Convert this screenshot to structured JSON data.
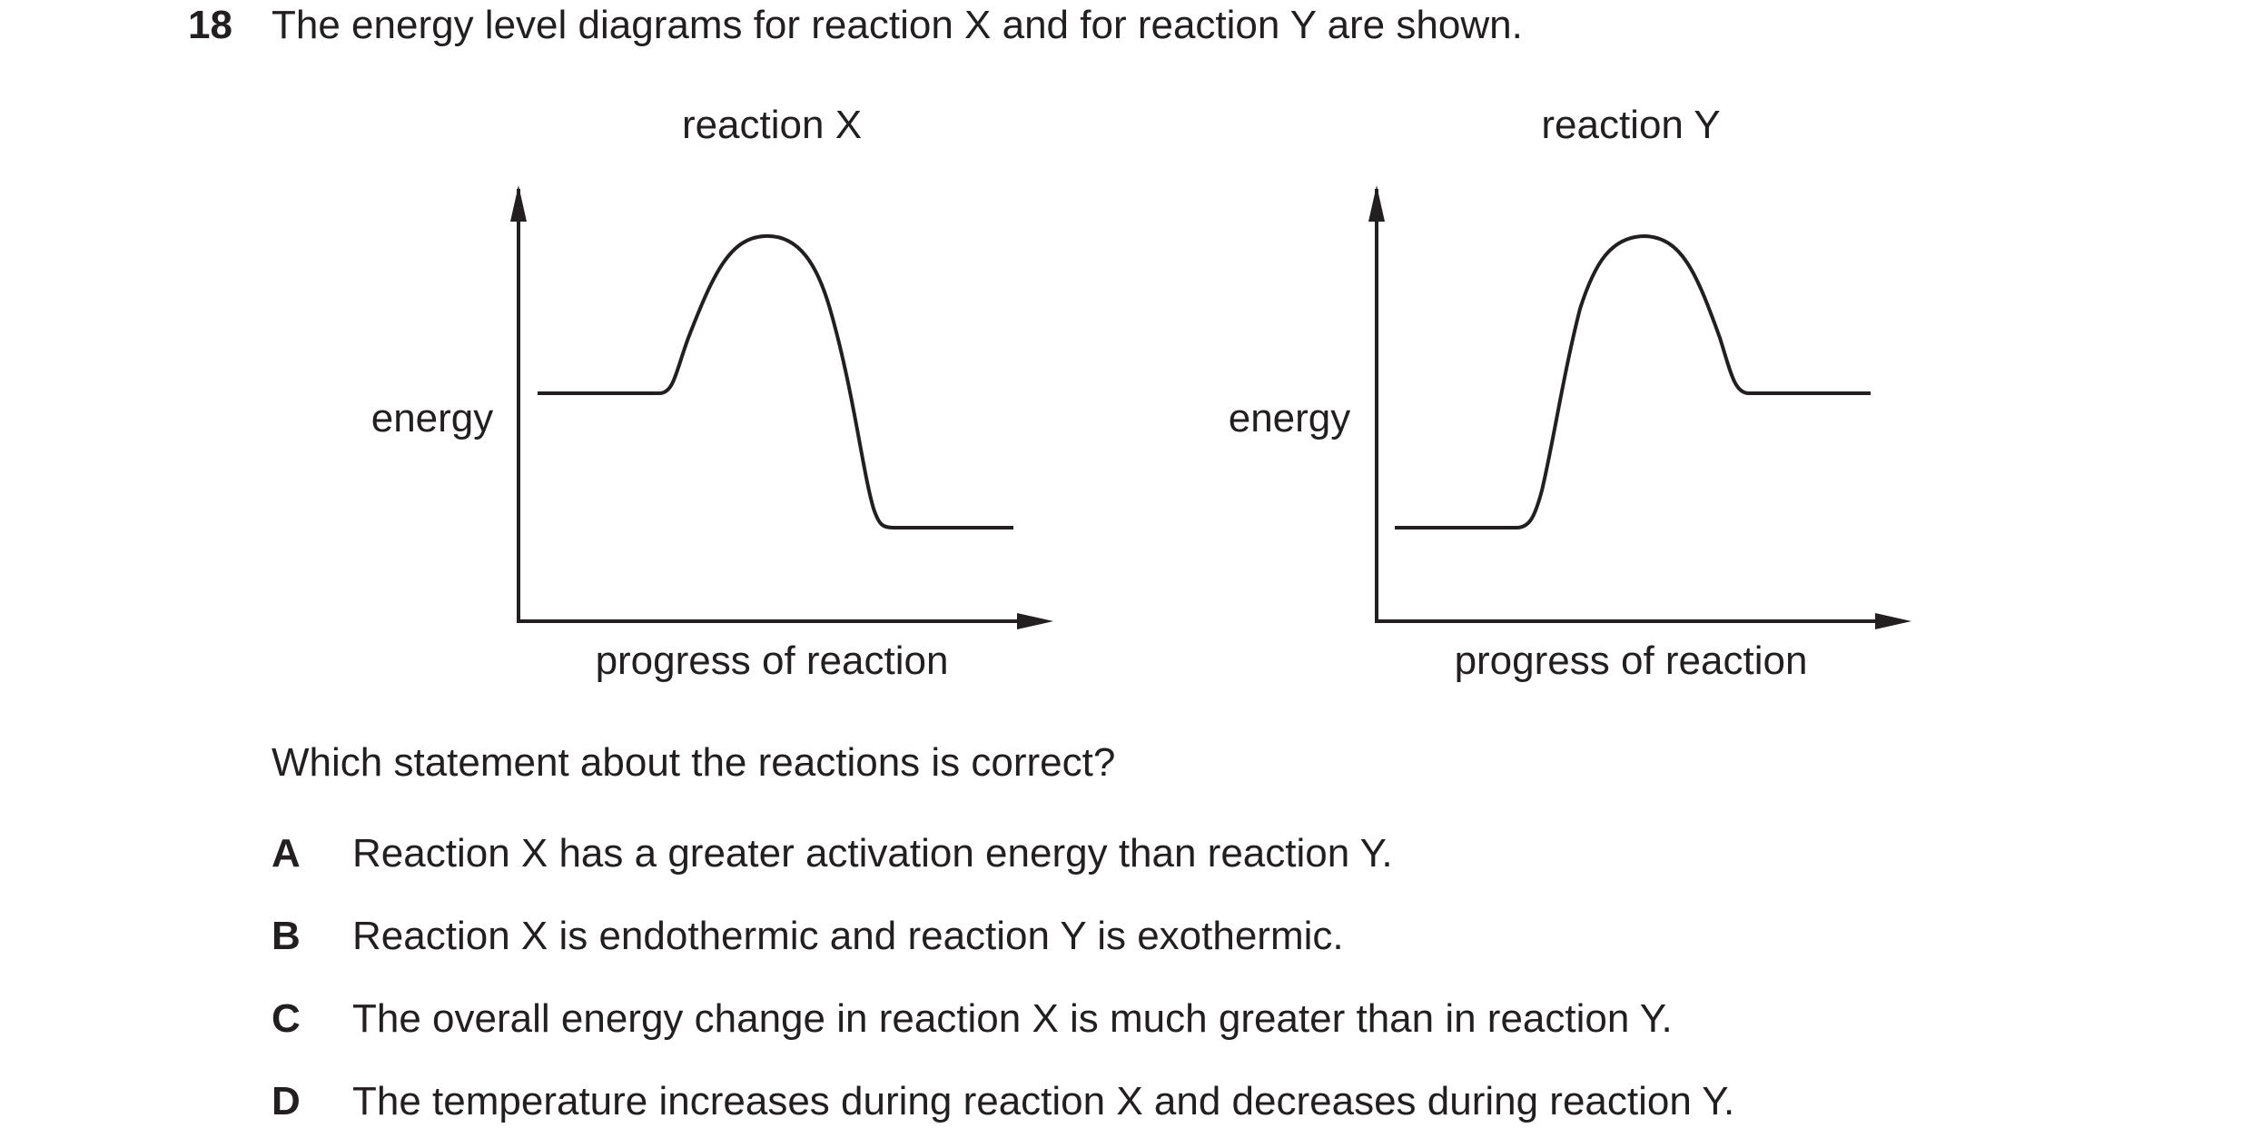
{
  "question": {
    "number": "18",
    "stem": "The energy level diagrams for reaction X and for reaction Y are shown.",
    "prompt": "Which statement about the reactions is correct?"
  },
  "diagrams": [
    {
      "title": "reaction X",
      "ylabel": "energy",
      "xlabel": "progress of reaction"
    },
    {
      "title": "reaction Y",
      "ylabel": "energy",
      "xlabel": "progress of reaction"
    }
  ],
  "options": [
    {
      "letter": "A",
      "text": "Reaction X has a greater activation energy than reaction Y."
    },
    {
      "letter": "B",
      "text": "Reaction X is endothermic and reaction Y is exothermic."
    },
    {
      "letter": "C",
      "text": "The overall energy change in reaction X is much greater than in reaction Y."
    },
    {
      "letter": "D",
      "text": "The temperature increases during reaction X and decreases during reaction Y."
    }
  ]
}
